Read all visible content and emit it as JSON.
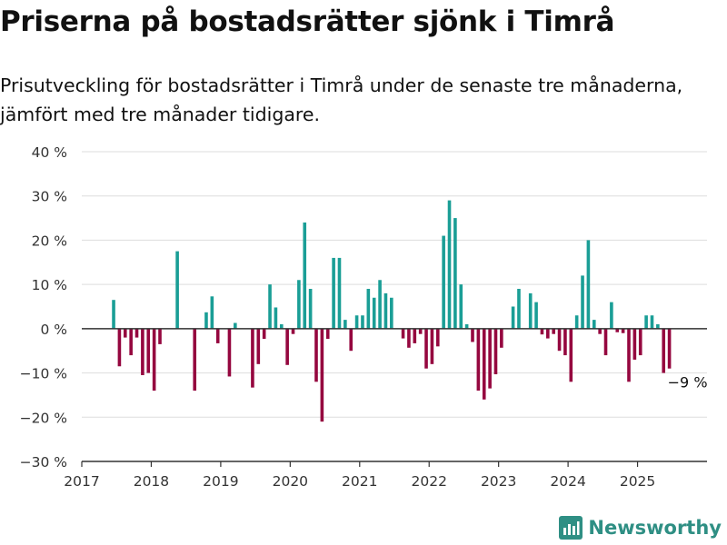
{
  "header": {
    "title": "Priserna på bostadsrätter sjönk i Timrå",
    "subtitle": "Prisutveckling för bostadsrätter i Timrå under de senaste tre månaderna, jämfört med tre månader tidigare."
  },
  "brand": {
    "name": "Newsworthy",
    "icon": "newsworthy-logo-icon",
    "color": "#2f8f84"
  },
  "colors": {
    "positive": "#1a9e96",
    "negative": "#95073f",
    "grid": "#dddddd",
    "axis": "#333333"
  },
  "chart_data": {
    "type": "bar",
    "title": "Priserna på bostadsrätter sjönk i Timrå",
    "xlabel": "",
    "ylabel": "",
    "ylim": [
      -30,
      40
    ],
    "xlim": [
      "2017-01",
      "2025-12"
    ],
    "y_ticks": [
      40,
      30,
      20,
      10,
      0,
      -10,
      -20,
      -30
    ],
    "y_tick_labels": [
      "40 %",
      "30 %",
      "20 %",
      "10 %",
      "0 %",
      "−10 %",
      "−20 %",
      "−30 %"
    ],
    "x_tick_labels": [
      "2017",
      "2018",
      "2019",
      "2020",
      "2021",
      "2022",
      "2023",
      "2024",
      "2025"
    ],
    "grid": true,
    "annotation": {
      "text": "−9 %",
      "month": "2025-06",
      "value": -9
    },
    "x": [
      "2017-06",
      "2017-07",
      "2017-08",
      "2017-09",
      "2017-10",
      "2017-11",
      "2017-12",
      "2018-01",
      "2018-02",
      "2018-05",
      "2018-08",
      "2018-10",
      "2018-11",
      "2018-12",
      "2019-02",
      "2019-03",
      "2019-06",
      "2019-07",
      "2019-08",
      "2019-09",
      "2019-10",
      "2019-11",
      "2019-12",
      "2020-01",
      "2020-02",
      "2020-03",
      "2020-04",
      "2020-05",
      "2020-06",
      "2020-07",
      "2020-08",
      "2020-09",
      "2020-10",
      "2020-11",
      "2020-12",
      "2021-01",
      "2021-02",
      "2021-03",
      "2021-04",
      "2021-05",
      "2021-06",
      "2021-08",
      "2021-09",
      "2021-10",
      "2021-11",
      "2021-12",
      "2022-01",
      "2022-02",
      "2022-03",
      "2022-04",
      "2022-05",
      "2022-06",
      "2022-07",
      "2022-08",
      "2022-09",
      "2022-10",
      "2022-11",
      "2022-12",
      "2023-01",
      "2023-03",
      "2023-04",
      "2023-06",
      "2023-07",
      "2023-08",
      "2023-09",
      "2023-10",
      "2023-11",
      "2023-12",
      "2024-01",
      "2024-02",
      "2024-03",
      "2024-04",
      "2024-05",
      "2024-06",
      "2024-07",
      "2024-08",
      "2024-09",
      "2024-10",
      "2024-11",
      "2024-12",
      "2025-01",
      "2025-02",
      "2025-03",
      "2025-04",
      "2025-05",
      "2025-06"
    ],
    "values": [
      6.5,
      -8.5,
      -2,
      -6,
      -2,
      -10.5,
      -10,
      -14,
      -3.5,
      17.5,
      -14,
      3.7,
      7.3,
      -3.3,
      -10.8,
      1.3,
      -13.3,
      -8,
      -2.3,
      10,
      4.8,
      1,
      -8.2,
      -1.2,
      11,
      24,
      9,
      -12,
      -21,
      -2.3,
      16,
      16,
      2,
      -5,
      3,
      3,
      9,
      7,
      11,
      8,
      7,
      -2.2,
      -4.3,
      -3.3,
      -1.2,
      -9,
      -8,
      -4,
      21,
      29,
      25,
      10,
      1,
      -3,
      -14,
      -16,
      -13.5,
      -10.3,
      -4.3,
      5,
      9,
      8,
      6,
      -1.3,
      -2.2,
      -1.2,
      -5,
      -6,
      -12,
      3,
      12,
      20,
      2,
      -1.2,
      -6,
      6,
      -0.8,
      -1,
      -12,
      -7,
      -6,
      3,
      3,
      1,
      -10,
      -9
    ]
  }
}
